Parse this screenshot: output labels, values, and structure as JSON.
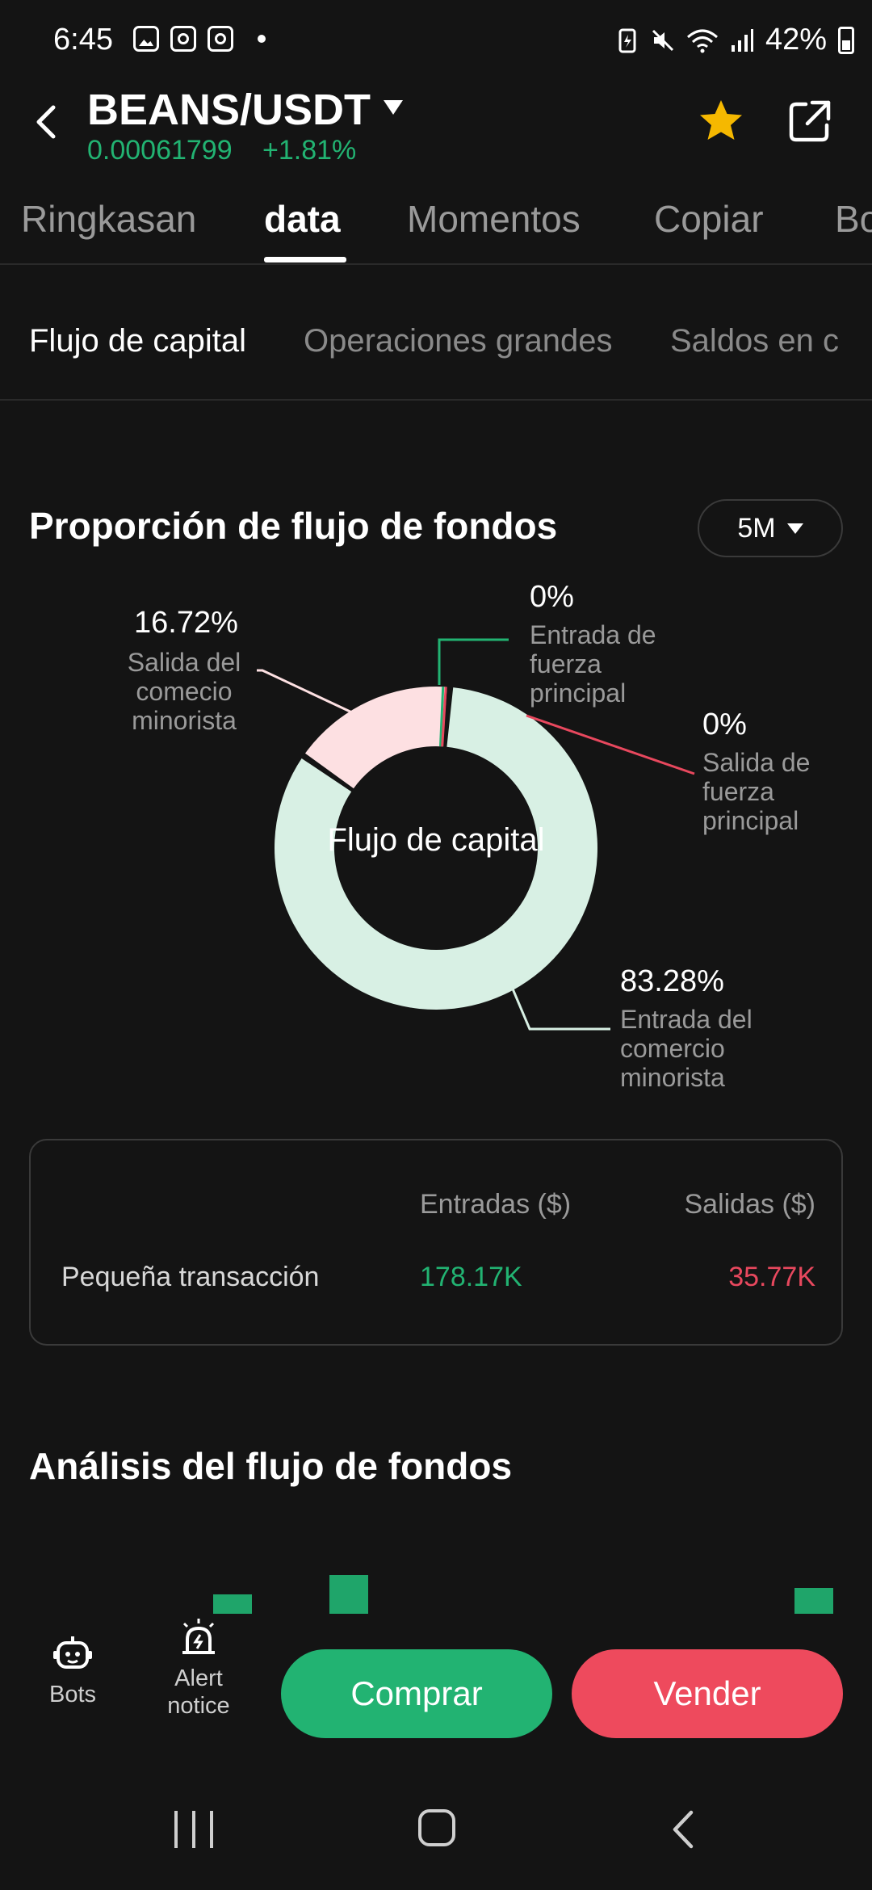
{
  "status_bar": {
    "time": "6:45",
    "battery": "42%"
  },
  "header": {
    "pair": "BEANS/USDT",
    "price": "0.00061799",
    "change": "+1.81%",
    "accent_up": "#22b372",
    "favorite_color": "#f5b800"
  },
  "tabs": [
    "Ringkasan",
    "data",
    "Momentos",
    "Copiar",
    "Bo"
  ],
  "subtabs": [
    "Flujo de capital",
    "Operaciones grandes",
    "Saldos en c"
  ],
  "proportion": {
    "title": "Proporción de flujo de fondos",
    "period": "5M",
    "center_label": "Flujo de capital",
    "segments": [
      {
        "pct": "83.28%",
        "label_lines": [
          "Entrada del",
          "comercio",
          "minorista"
        ],
        "value": 83.28,
        "color": "#d8f0e4"
      },
      {
        "pct": "16.72%",
        "label_lines": [
          "Salida del",
          "comecio",
          "minorista"
        ],
        "value": 16.72,
        "color": "#fde0e2"
      },
      {
        "pct": "0%",
        "label_lines": [
          "Entrada de",
          "fuerza",
          "principal"
        ],
        "value": 0,
        "color": "#22b372"
      },
      {
        "pct": "0%",
        "label_lines": [
          "Salida de",
          "fuerza",
          "principal"
        ],
        "value": 0,
        "color": "#e8485e"
      }
    ]
  },
  "summary": {
    "head_in": "Entradas ($)",
    "head_out": "Salidas ($)",
    "row_label": "Pequeña transacción",
    "row_in": "178.17K",
    "row_out": "35.77K"
  },
  "analysis": {
    "title": "Análisis del flujo de fondos"
  },
  "actions": {
    "bots": "Bots",
    "alert_line1": "Alert",
    "alert_line2": "notice",
    "buy": "Comprar",
    "sell": "Vender"
  }
}
